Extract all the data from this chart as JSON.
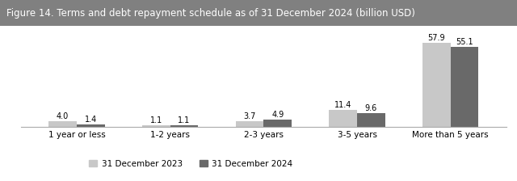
{
  "title": "Figure 14. Terms and debt repayment schedule as of 31 December 2024 (billion USD)",
  "categories": [
    "1 year or less",
    "1-2 years",
    "2-3 years",
    "3-5 years",
    "More than 5 years"
  ],
  "series_2023": [
    4.0,
    1.1,
    3.7,
    11.4,
    57.9
  ],
  "series_2024": [
    1.4,
    1.1,
    4.9,
    9.6,
    55.1
  ],
  "color_2023": "#c8c8c8",
  "color_2024": "#696969",
  "label_2023": "31 December 2023",
  "label_2024": "31 December 2024",
  "title_bg_color": "#808080",
  "title_text_color": "#ffffff",
  "bar_width": 0.3,
  "ylim": [
    0,
    65
  ],
  "title_fontsize": 8.5,
  "tick_fontsize": 7.5,
  "value_fontsize": 7.0,
  "legend_fontsize": 7.5,
  "fig_bg_color": "#ffffff"
}
